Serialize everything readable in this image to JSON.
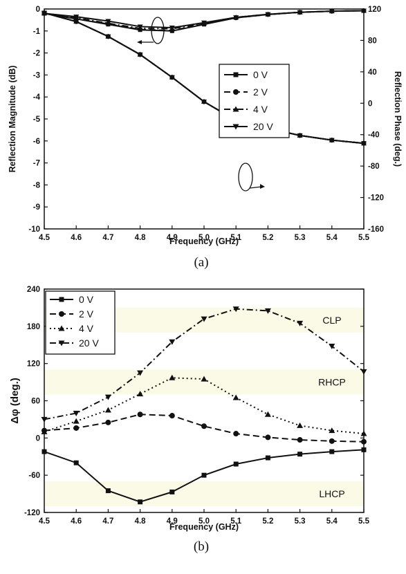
{
  "chart_data": [
    {
      "type": "line",
      "caption": "(a)",
      "xlabel": "Frequency (GHz)",
      "ylabel": "Reflection Magnitude (dB)",
      "y2label": "Reflection Phase (deg.)",
      "x": [
        4.5,
        4.6,
        4.7,
        4.8,
        4.9,
        5.0,
        5.1,
        5.2,
        5.3,
        5.4,
        5.5
      ],
      "xlim": [
        4.5,
        5.5
      ],
      "ylim": [
        -10,
        0
      ],
      "y2lim": [
        -160,
        120
      ],
      "xticks": [
        "4.5",
        "4.6",
        "4.7",
        "4.8",
        "4.9",
        "5.0",
        "5.1",
        "5.2",
        "5.3",
        "5.4",
        "5.5"
      ],
      "yticks": [
        "0",
        "-1",
        "-2",
        "-3",
        "-4",
        "-5",
        "-6",
        "-7",
        "-8",
        "-9",
        "-10"
      ],
      "y2ticks": [
        "120",
        "80",
        "40",
        "0",
        "-40",
        "-80",
        "-120",
        "-160"
      ],
      "legend_position": "right",
      "grid": false,
      "magnitude_series": [
        {
          "name": "0 V",
          "marker": "square",
          "dash": "solid",
          "values": [
            -0.2,
            -0.45,
            -0.7,
            -0.95,
            -1.0,
            -0.7,
            -0.4,
            -0.25,
            -0.15,
            -0.1,
            -0.08
          ]
        },
        {
          "name": "2 V",
          "marker": "circle",
          "dash": "dash",
          "values": [
            -0.2,
            -0.45,
            -0.68,
            -0.93,
            -0.98,
            -0.68,
            -0.4,
            -0.25,
            -0.15,
            -0.1,
            -0.08
          ]
        },
        {
          "name": "4 V",
          "marker": "triangle-up",
          "dash": "dashdot",
          "values": [
            -0.2,
            -0.4,
            -0.65,
            -0.88,
            -0.9,
            -0.65,
            -0.38,
            -0.24,
            -0.15,
            -0.1,
            -0.08
          ]
        },
        {
          "name": "20 V",
          "marker": "triangle-down",
          "dash": "solid",
          "values": [
            -0.2,
            -0.35,
            -0.55,
            -0.8,
            -0.85,
            -0.62,
            -0.38,
            -0.24,
            -0.15,
            -0.1,
            -0.08
          ]
        }
      ],
      "phase_series": [
        {
          "name": "0 V",
          "marker": "square",
          "dash": "solid",
          "values": [
            115,
            104,
            85,
            62,
            33,
            2,
            -22,
            -32,
            -41,
            -47,
            -51
          ]
        },
        {
          "name": "2 V",
          "marker": "circle",
          "dash": "dash",
          "values": [
            115,
            104,
            85,
            62,
            33,
            2,
            -22,
            -32,
            -41,
            -47,
            -51
          ]
        },
        {
          "name": "4 V",
          "marker": "triangle-up",
          "dash": "dashdot",
          "values": [
            115,
            104,
            85,
            62,
            33,
            2,
            -22,
            -32,
            -41,
            -47,
            -51
          ]
        },
        {
          "name": "20 V",
          "marker": "triangle-down",
          "dash": "solid",
          "values": [
            115,
            104,
            85,
            62,
            33,
            2,
            -22,
            -32,
            -41,
            -47,
            -51
          ]
        }
      ]
    },
    {
      "type": "line",
      "caption": "(b)",
      "xlabel": "Frequency (GHz)",
      "ylabel": "Δφ (deg.)",
      "x": [
        4.5,
        4.6,
        4.7,
        4.8,
        4.9,
        5.0,
        5.1,
        5.2,
        5.3,
        5.4,
        5.5
      ],
      "xlim": [
        4.5,
        5.5
      ],
      "ylim": [
        -120,
        240
      ],
      "xticks": [
        "4.5",
        "4.6",
        "4.7",
        "4.8",
        "4.9",
        "5.0",
        "5.1",
        "5.2",
        "5.3",
        "5.4",
        "5.5"
      ],
      "yticks": [
        "240",
        "180",
        "120",
        "60",
        "0",
        "-60",
        "-120"
      ],
      "legend_position": "top-left",
      "grid": false,
      "bands": [
        {
          "label": "CLP",
          "range": [
            170,
            210
          ],
          "color": "#fbfae6"
        },
        {
          "label": "RHCP",
          "range": [
            70,
            110
          ],
          "color": "#fbfae6"
        },
        {
          "label": "LHCP",
          "range": [
            -110,
            -70
          ],
          "color": "#fbfae6"
        }
      ],
      "series": [
        {
          "name": "0 V",
          "marker": "square",
          "dash": "solid",
          "values": [
            -22,
            -40,
            -85,
            -103,
            -87,
            -60,
            -42,
            -32,
            -26,
            -22,
            -19
          ]
        },
        {
          "name": "2 V",
          "marker": "circle",
          "dash": "dash",
          "values": [
            12,
            16,
            25,
            38,
            36,
            19,
            7,
            1,
            -3,
            -5,
            -6
          ]
        },
        {
          "name": "4 V",
          "marker": "triangle-up",
          "dash": "dot",
          "values": [
            10,
            27,
            45,
            71,
            97,
            95,
            65,
            38,
            20,
            12,
            7
          ]
        },
        {
          "name": "20 V",
          "marker": "triangle-down",
          "dash": "dashdot",
          "values": [
            30,
            40,
            66,
            105,
            155,
            192,
            208,
            205,
            185,
            148,
            107
          ]
        }
      ]
    }
  ]
}
